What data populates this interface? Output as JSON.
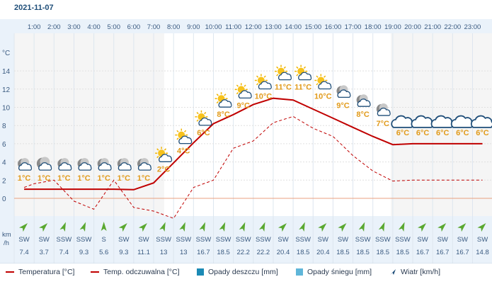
{
  "date": "2021-11-07",
  "chart_data": {
    "type": "line",
    "hours": [
      "1:00",
      "2:00",
      "3:00",
      "4:00",
      "5:00",
      "6:00",
      "7:00",
      "8:00",
      "9:00",
      "10:00",
      "11:00",
      "12:00",
      "13:00",
      "14:00",
      "15:00",
      "16:00",
      "17:00",
      "18:00",
      "19:00",
      "20:00",
      "21:00",
      "22:00",
      "23:00"
    ],
    "y_unit": "°C",
    "y_ticks": [
      0,
      2,
      4,
      6,
      8,
      10,
      12,
      14
    ],
    "ylim": [
      -1,
      15
    ],
    "temperature_curve": [
      {
        "h": 0.5,
        "v": 1.0
      },
      {
        "h": 1,
        "v": 1.0
      },
      {
        "h": 2,
        "v": 1.0
      },
      {
        "h": 3,
        "v": 1.0
      },
      {
        "h": 4,
        "v": 1.0
      },
      {
        "h": 5,
        "v": 1.0
      },
      {
        "h": 6,
        "v": 0.95
      },
      {
        "h": 7,
        "v": 1.7
      },
      {
        "h": 8,
        "v": 3.9
      },
      {
        "h": 9,
        "v": 6.1
      },
      {
        "h": 10,
        "v": 8.2
      },
      {
        "h": 11,
        "v": 9.2
      },
      {
        "h": 12,
        "v": 10.3
      },
      {
        "h": 13,
        "v": 11.0
      },
      {
        "h": 14,
        "v": 10.8
      },
      {
        "h": 15,
        "v": 9.8
      },
      {
        "h": 16,
        "v": 8.8
      },
      {
        "h": 17,
        "v": 7.8
      },
      {
        "h": 18,
        "v": 6.8
      },
      {
        "h": 19,
        "v": 5.9
      },
      {
        "h": 20,
        "v": 6.0
      },
      {
        "h": 21,
        "v": 6.0
      },
      {
        "h": 22,
        "v": 6.0
      },
      {
        "h": 23,
        "v": 6.0
      },
      {
        "h": 23.5,
        "v": 6.0
      }
    ],
    "feels_like_curve": [
      {
        "h": 0.5,
        "v": 1.2
      },
      {
        "h": 1,
        "v": 1.6
      },
      {
        "h": 2,
        "v": 2.0
      },
      {
        "h": 3,
        "v": -0.3
      },
      {
        "h": 4,
        "v": -1.2
      },
      {
        "h": 5,
        "v": 2.0
      },
      {
        "h": 6,
        "v": -1.0
      },
      {
        "h": 7,
        "v": -1.4
      },
      {
        "h": 8,
        "v": -2.2
      },
      {
        "h": 9,
        "v": 1.2
      },
      {
        "h": 10,
        "v": 2.0
      },
      {
        "h": 11,
        "v": 5.5
      },
      {
        "h": 12,
        "v": 6.3
      },
      {
        "h": 13,
        "v": 8.3
      },
      {
        "h": 14,
        "v": 9.0
      },
      {
        "h": 15,
        "v": 7.7
      },
      {
        "h": 16,
        "v": 6.8
      },
      {
        "h": 17,
        "v": 4.7
      },
      {
        "h": 18,
        "v": 3.0
      },
      {
        "h": 19,
        "v": 1.9
      },
      {
        "h": 20,
        "v": 2.0
      },
      {
        "h": 21,
        "v": 2.0
      },
      {
        "h": 22,
        "v": 2.0
      },
      {
        "h": 23,
        "v": 2.0
      },
      {
        "h": 23.5,
        "v": 2.0
      }
    ],
    "temp_labels": [
      "1°C",
      "1°C",
      "1°C",
      "1°C",
      "1°C",
      "1°C",
      "1°C",
      "2°C",
      "4°C",
      "6°C",
      "8°C",
      "9°C",
      "10°C",
      "11°C",
      "11°C",
      "10°C",
      "9°C",
      "8°C",
      "7°C",
      "6°C",
      "6°C",
      "6°C",
      "6°C",
      "6°C"
    ],
    "label_temps": [
      1,
      1,
      1,
      1,
      1,
      1,
      1,
      2,
      4,
      6,
      8,
      9,
      10,
      11,
      11,
      10,
      9,
      8,
      7,
      6,
      6,
      6,
      6,
      6
    ],
    "icons": [
      "night-cloudy",
      "night-cloudy",
      "night-cloudy",
      "night-cloudy",
      "night-cloudy",
      "night-cloudy",
      "night-cloudy",
      "sun-cloudy",
      "sun-cloudy",
      "sun-cloudy",
      "sun-cloudy",
      "sun-cloudy",
      "sun-cloudy",
      "sun-cloudy",
      "sun-cloudy",
      "sun-cloudy",
      "night-cloudy",
      "night-cloudy",
      "night-cloudy",
      "cloud",
      "cloud",
      "cloud",
      "cloud",
      "cloud"
    ],
    "wind_unit": "km/h",
    "wind_dir": [
      "SW",
      "SW",
      "SSW",
      "SSW",
      "S",
      "SW",
      "SW",
      "SSW",
      "SSW",
      "SSW",
      "SSW",
      "SSW",
      "SSW",
      "SW",
      "SSW",
      "SW",
      "SW",
      "SSW",
      "SSW",
      "SSW",
      "SW",
      "SW",
      "SW",
      "SW"
    ],
    "wind_speed": [
      "7.4",
      "3.7",
      "7.4",
      "9.3",
      "5.6",
      "9.3",
      "11.1",
      "13",
      "13",
      "16.7",
      "18.5",
      "22.2",
      "22.2",
      "20.4",
      "18.5",
      "20.4",
      "18.5",
      "18.5",
      "18.5",
      "18.5",
      "16.7",
      "16.7",
      "16.7",
      "14.8"
    ],
    "colors": {
      "temperature": "#c00000",
      "feels_like": "#c00000",
      "rain": "#1b8ab5",
      "snow": "#5fb6d9",
      "wind_arrow": "#5aa830",
      "zero_line": "#e8a080"
    }
  },
  "legend": {
    "temperature": "Temperatura [°C]",
    "feels_like": "Temp. odczuwalna [°C]",
    "rain": "Opady deszczu [mm]",
    "snow": "Opady śniegu [mm]",
    "wind": "Wiatr [km/h]"
  }
}
